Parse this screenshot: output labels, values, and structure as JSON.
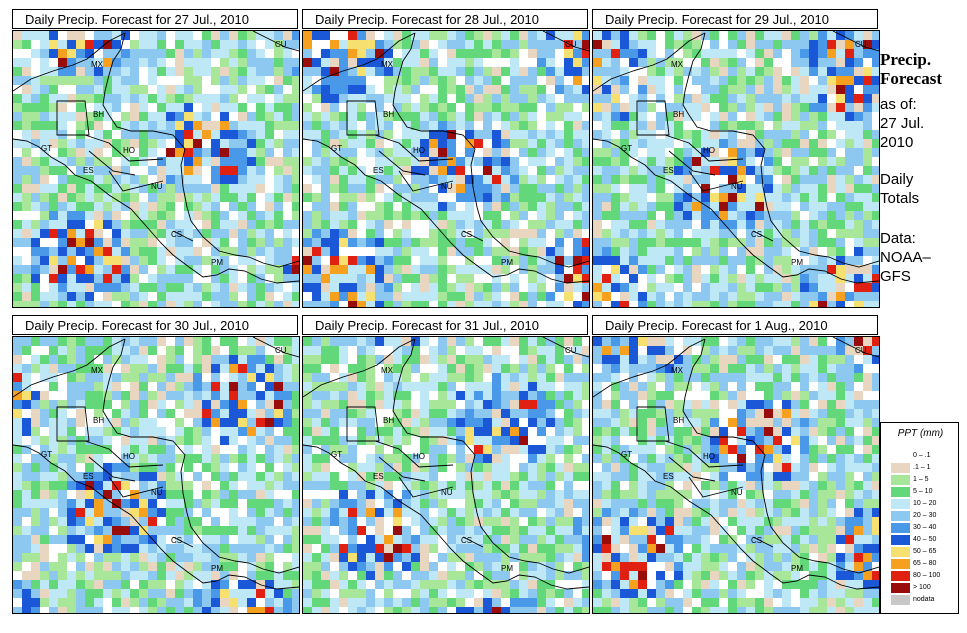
{
  "panels": [
    {
      "title": "Daily Precip. Forecast for  27 Jul., 2010",
      "seed": 27
    },
    {
      "title": "Daily Precip. Forecast for  28 Jul., 2010",
      "seed": 28
    },
    {
      "title": "Daily Precip. Forecast for  29 Jul., 2010",
      "seed": 29
    },
    {
      "title": "Daily Precip. Forecast for  30 Jul., 2010",
      "seed": 30
    },
    {
      "title": "Daily Precip. Forecast for  31 Jul., 2010",
      "seed": 31
    },
    {
      "title": "Daily Precip. Forecast for  1 Aug., 2010",
      "seed": 1
    }
  ],
  "country_labels": [
    "MX",
    "CU",
    "BH",
    "GT",
    "HO",
    "ES",
    "NU",
    "CS",
    "PM"
  ],
  "side": {
    "title_line1": "Precip.",
    "title_line2": "Forecast",
    "asof_line1": "as of:",
    "asof_line2": "27 Jul.",
    "asof_line3": "2010",
    "daily_line1": "Daily",
    "daily_line2": "Totals",
    "data_line1": "Data:",
    "data_line2": "NOAA–",
    "data_line3": "GFS"
  },
  "legend": {
    "title": "PPT (mm)",
    "items": [
      {
        "label": "0 – .1",
        "color": "#ffffff"
      },
      {
        "label": ".1 – 1",
        "color": "#e8d6c0"
      },
      {
        "label": "1 – 5",
        "color": "#a8e69a"
      },
      {
        "label": "5 – 10",
        "color": "#62d87a"
      },
      {
        "label": "10 – 20",
        "color": "#bfe8f7"
      },
      {
        "label": "20 – 30",
        "color": "#8cc8f0"
      },
      {
        "label": "30 – 40",
        "color": "#4a98e8"
      },
      {
        "label": "40 – 50",
        "color": "#1a58d8"
      },
      {
        "label": "50 – 65",
        "color": "#f6e070"
      },
      {
        "label": "65 – 80",
        "color": "#f6a020"
      },
      {
        "label": "80 – 100",
        "color": "#e02010"
      },
      {
        "label": "> 100",
        "color": "#980c0c"
      },
      {
        "label": "nodata",
        "color": "#c8c8c8"
      }
    ]
  }
}
